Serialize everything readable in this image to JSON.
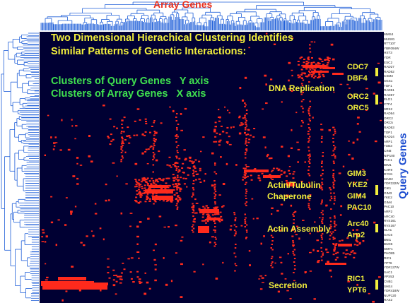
{
  "top_title": "Array Genes",
  "side_title": "Query Genes",
  "heading": [
    "Two Dimensional Hierachical Clustering Identifies",
    "Similar Patterns of Genetic Interactions:"
  ],
  "cluster_lines": [
    "Clusters of Query Genes   Y axis",
    "Clusters of Array Genes   X axis"
  ],
  "groups": [
    {
      "label": [
        "DNA Replication"
      ],
      "genes": [
        "CDC7",
        "DBF4",
        "ORC2",
        "ORC5"
      ]
    },
    {
      "label": [
        "Actin/Tubulin",
        "Chaperone"
      ],
      "genes": [
        "GIM3",
        "YKE2",
        "GIM4",
        "PAC10"
      ]
    },
    {
      "label": [
        "Actin Assembly"
      ],
      "genes": [
        "Arc40",
        "Arp2"
      ]
    },
    {
      "label": [
        "Secretion"
      ],
      "genes": [
        "RIC1",
        "YPT6"
      ]
    }
  ],
  "query_gene_list": [
    "MMS4",
    "MUS81",
    "RTT107",
    "YBR094W",
    "HST3",
    "YDR",
    "ESC2",
    "RAD27",
    "RAD52",
    "CSM3",
    "SGS1",
    "TOF1",
    "RAD51",
    "RAD57",
    "ELG1",
    "CTF4",
    "SRS2",
    "RAD54",
    "ORC2",
    "ORC5",
    "RAD53",
    "TOP1",
    "RAD24",
    "ARP1",
    "TUB3",
    "CIN8",
    "NIP100",
    "PAC1",
    "BIM1",
    "KAR9",
    "DYN1",
    "MAD2",
    "YDR332W",
    "CIK1",
    "GIM3",
    "YKE2",
    "GIM4",
    "PAC10",
    "ARP2",
    "ARC40",
    "RVS161",
    "RVS167",
    "SLA1",
    "SAC6",
    "BNI1",
    "BUD6",
    "SMY1",
    "PHO85",
    "RIC1",
    "YPT6",
    "YDR137W",
    "SAC1",
    "VPS53",
    "CNB1",
    "SHE4",
    "YDR418W",
    "NUP120",
    "RAS2"
  ],
  "colors": {
    "background": "#000033",
    "interaction": "#ff2a1c",
    "title_red": "#e8301e",
    "label_yellow": "#f2ee3c",
    "green": "#3fe04f",
    "dendrogram": "#1f5fd8"
  }
}
